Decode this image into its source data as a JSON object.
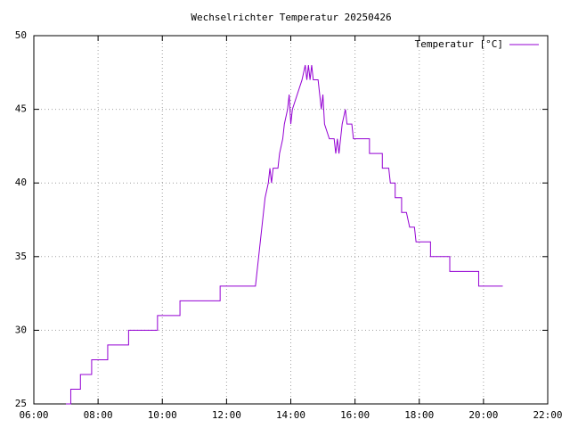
{
  "chart_data": {
    "type": "line",
    "title": "Wechselrichter Temperatur 20250426",
    "x": [
      7.0,
      7.15,
      7.15,
      7.45,
      7.45,
      7.8,
      7.8,
      8.3,
      8.3,
      8.95,
      8.95,
      9.85,
      9.85,
      10.55,
      10.55,
      11.8,
      11.8,
      12.9,
      12.95,
      13.0,
      13.05,
      13.1,
      13.15,
      13.2,
      13.3,
      13.35,
      13.4,
      13.45,
      13.6,
      13.65,
      13.75,
      13.8,
      13.9,
      13.95,
      14.0,
      14.05,
      14.2,
      14.35,
      14.45,
      14.5,
      14.55,
      14.6,
      14.65,
      14.7,
      14.85,
      14.9,
      14.95,
      15.0,
      15.05,
      15.2,
      15.35,
      15.4,
      15.45,
      15.5,
      15.55,
      15.6,
      15.7,
      15.75,
      15.9,
      15.95,
      16.45,
      16.45,
      16.85,
      16.85,
      17.05,
      17.1,
      17.25,
      17.25,
      17.45,
      17.45,
      17.6,
      17.7,
      17.85,
      17.9,
      18.35,
      18.35,
      18.95,
      18.95,
      19.85,
      19.85,
      20.6
    ],
    "series": [
      {
        "name": "Temperatur [°C]",
        "color": "#9400d3",
        "values": [
          25,
          25,
          26,
          26,
          27,
          27,
          28,
          28,
          29,
          29,
          30,
          30,
          31,
          31,
          32,
          32,
          33,
          33,
          34,
          35,
          36,
          37,
          38,
          39,
          40,
          41,
          40,
          41,
          41,
          42,
          43,
          44,
          45,
          46,
          44,
          45,
          46,
          47,
          48,
          47,
          48,
          47,
          48,
          47,
          47,
          46,
          45,
          46,
          44,
          43,
          43,
          42,
          43,
          42,
          43,
          44,
          45,
          44,
          44,
          43,
          43,
          42,
          42,
          41,
          41,
          40,
          40,
          39,
          39,
          38,
          38,
          37,
          37,
          36,
          36,
          35,
          35,
          34,
          34,
          33,
          33
        ]
      }
    ],
    "xlim": [
      6,
      22
    ],
    "xticks": [
      {
        "value": 6,
        "label": "06:00"
      },
      {
        "value": 8,
        "label": "08:00"
      },
      {
        "value": 10,
        "label": "10:00"
      },
      {
        "value": 12,
        "label": "12:00"
      },
      {
        "value": 14,
        "label": "14:00"
      },
      {
        "value": 16,
        "label": "16:00"
      },
      {
        "value": 18,
        "label": "18:00"
      },
      {
        "value": 20,
        "label": "20:00"
      },
      {
        "value": 22,
        "label": "22:00"
      }
    ],
    "ylim": [
      25,
      50
    ],
    "yticks": [
      25,
      30,
      35,
      40,
      45,
      50
    ],
    "grid": true,
    "legend": "top-right"
  }
}
